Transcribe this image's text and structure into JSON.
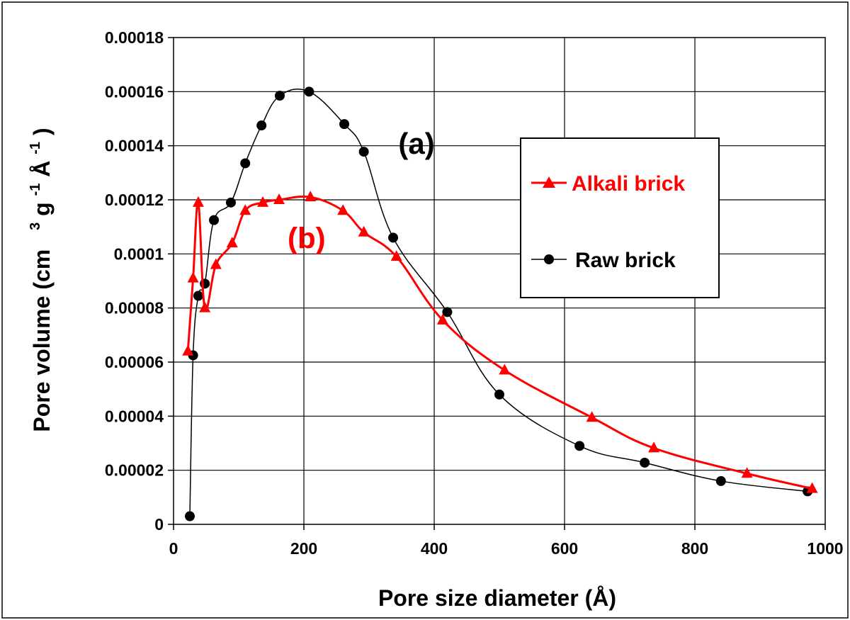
{
  "chart_data": {
    "type": "line",
    "title": "",
    "xlabel": "Pore size diameter (Å)",
    "ylabel": {
      "part1": "Pore volume (cm",
      "sup1": "3",
      "part2": "g",
      "sup2": "-1",
      "part3": "Å",
      "sup3": "-1",
      "part4": ")"
    },
    "xlim": [
      0,
      1000
    ],
    "ylim": [
      0,
      0.00018
    ],
    "xticks": [
      0,
      200,
      400,
      600,
      800,
      1000
    ],
    "xtick_labels": [
      "0",
      "200",
      "400",
      "600",
      "800",
      "1000"
    ],
    "yticks": [
      0,
      2e-05,
      4e-05,
      6e-05,
      8e-05,
      0.0001,
      0.00012,
      0.00014,
      0.00016,
      0.00018
    ],
    "ytick_labels": [
      "0",
      "0.00002",
      "0.00004",
      "0.00006",
      "0.00008",
      "0.0001",
      "0.00012",
      "0.00014",
      "0.00016",
      "0.00018"
    ],
    "grid": true,
    "legend_position": "top-right",
    "series": [
      {
        "name": "Alkali brick",
        "color": "#ff0000",
        "marker": "triangle",
        "x": [
          22,
          30,
          38,
          48,
          65,
          90,
          110,
          137,
          162,
          210,
          260,
          292,
          342,
          413,
          508,
          642,
          737,
          880,
          980
        ],
        "y": [
          6.4e-05,
          9.1e-05,
          0.000119,
          8e-05,
          9.6e-05,
          0.000104,
          0.000116,
          0.000119,
          0.00012,
          0.000121,
          0.000116,
          0.000108,
          9.9e-05,
          7.55e-05,
          5.7e-05,
          3.95e-05,
          2.82e-05,
          1.88e-05,
          1.32e-05
        ]
      },
      {
        "name": "Raw brick",
        "color": "#000000",
        "marker": "circle",
        "x": [
          25,
          30,
          38,
          48,
          62,
          88,
          110,
          135,
          163,
          208,
          262,
          292,
          337,
          420,
          500,
          623,
          723,
          840,
          973
        ],
        "y": [
          3e-06,
          6.25e-05,
          8.45e-05,
          8.9e-05,
          0.0001125,
          0.000119,
          0.0001335,
          0.0001475,
          0.0001585,
          0.00016,
          0.000148,
          0.0001378,
          0.000106,
          7.85e-05,
          4.8e-05,
          2.9e-05,
          2.28e-05,
          1.6e-05,
          1.22e-05
        ]
      }
    ],
    "annotations": [
      {
        "text": "(a)",
        "color": "#000000",
        "x": 345,
        "y": 0.000137
      },
      {
        "text": "(b)",
        "color": "#ff0000",
        "x": 175,
        "y": 0.000102
      }
    ]
  }
}
